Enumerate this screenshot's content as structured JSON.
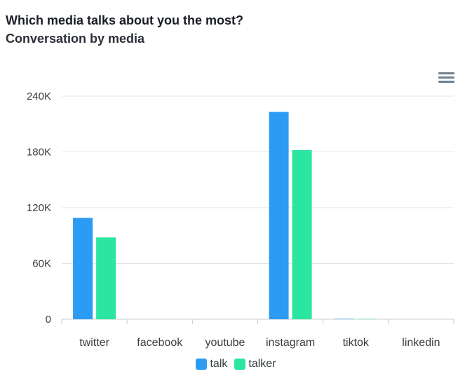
{
  "title": "Which media talks about you the most?",
  "subtitle": "Conversation by media",
  "menu": {
    "icon": "hamburger-menu-icon"
  },
  "colors": {
    "talk": "#2b9bf4",
    "talker": "#2ae6a0",
    "grid": "#e2e5e8",
    "axis": "#c8ccd0"
  },
  "chart_data": {
    "type": "bar",
    "title": "Which media talks about you the most?",
    "subtitle": "Conversation by media",
    "categories": [
      "twitter",
      "facebook",
      "youtube",
      "instagram",
      "tiktok",
      "linkedin"
    ],
    "series": [
      {
        "name": "talk",
        "values": [
          109000,
          0,
          0,
          223000,
          500,
          0
        ]
      },
      {
        "name": "talker",
        "values": [
          88000,
          0,
          0,
          182000,
          400,
          0
        ]
      }
    ],
    "yticks": [
      "0",
      "60K",
      "120K",
      "180K",
      "240K"
    ],
    "ytick_values": [
      0,
      60000,
      120000,
      180000,
      240000
    ],
    "ylim": [
      0,
      240000
    ],
    "xlabel": "",
    "ylabel": "",
    "grid": true,
    "legend": "bottom-center"
  }
}
